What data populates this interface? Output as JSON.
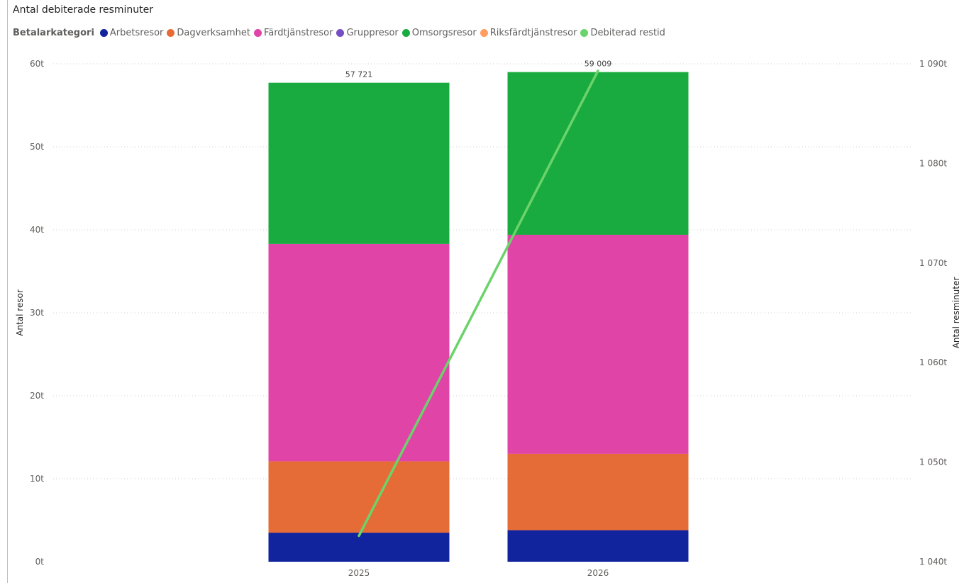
{
  "title": "Antal debiterade resminuter",
  "legend": {
    "title": "Betalarkategori",
    "items": [
      {
        "label": "Arbetsresor",
        "color": "#12239e"
      },
      {
        "label": "Dagverksamhet",
        "color": "#e66c37"
      },
      {
        "label": "Färdtjänstresor",
        "color": "#e044a7"
      },
      {
        "label": "Gruppresor",
        "color": "#744ec2"
      },
      {
        "label": "Omsorgsresor",
        "color": "#1aab40"
      },
      {
        "label": "Riksfärdtjänstresor",
        "color": "#ff9e60"
      },
      {
        "label": "Debiterad restid",
        "color": "#6bd36b"
      }
    ]
  },
  "chart_data": {
    "type": "bar",
    "stacked": true,
    "combo_line": true,
    "categories": [
      "2025",
      "2026"
    ],
    "series": [
      {
        "name": "Arbetsresor",
        "values": [
          3500,
          3800
        ]
      },
      {
        "name": "Dagverksamhet",
        "values": [
          8600,
          9200
        ]
      },
      {
        "name": "Färdtjänstresor",
        "values": [
          26200,
          26400
        ]
      },
      {
        "name": "Gruppresor",
        "values": [
          0,
          0
        ]
      },
      {
        "name": "Omsorgsresor",
        "values": [
          19421,
          19609
        ]
      },
      {
        "name": "Riksfärdtjänstresor",
        "values": [
          0,
          0
        ]
      }
    ],
    "totals": [
      57721,
      59009
    ],
    "total_labels": [
      "57 721",
      "59 009"
    ],
    "line_series": {
      "name": "Debiterad restid",
      "values": [
        1042600,
        1089300
      ]
    },
    "ylabel": "Antal resor",
    "y2label": "Antal resminuter",
    "ylim": [
      0,
      60000
    ],
    "y2lim": [
      1040000,
      1090000
    ],
    "y_ticks": [
      {
        "value": 0,
        "label": "0t"
      },
      {
        "value": 10000,
        "label": "10t"
      },
      {
        "value": 20000,
        "label": "20t"
      },
      {
        "value": 30000,
        "label": "30t"
      },
      {
        "value": 40000,
        "label": "40t"
      },
      {
        "value": 50000,
        "label": "50t"
      },
      {
        "value": 60000,
        "label": "60t"
      }
    ],
    "y2_ticks": [
      {
        "value": 1040000,
        "label": "1 040t"
      },
      {
        "value": 1050000,
        "label": "1 050t"
      },
      {
        "value": 1060000,
        "label": "1 060t"
      },
      {
        "value": 1070000,
        "label": "1 070t"
      },
      {
        "value": 1080000,
        "label": "1 080t"
      },
      {
        "value": 1090000,
        "label": "1 090t"
      }
    ],
    "grid": true,
    "legend_position": "top-left"
  }
}
